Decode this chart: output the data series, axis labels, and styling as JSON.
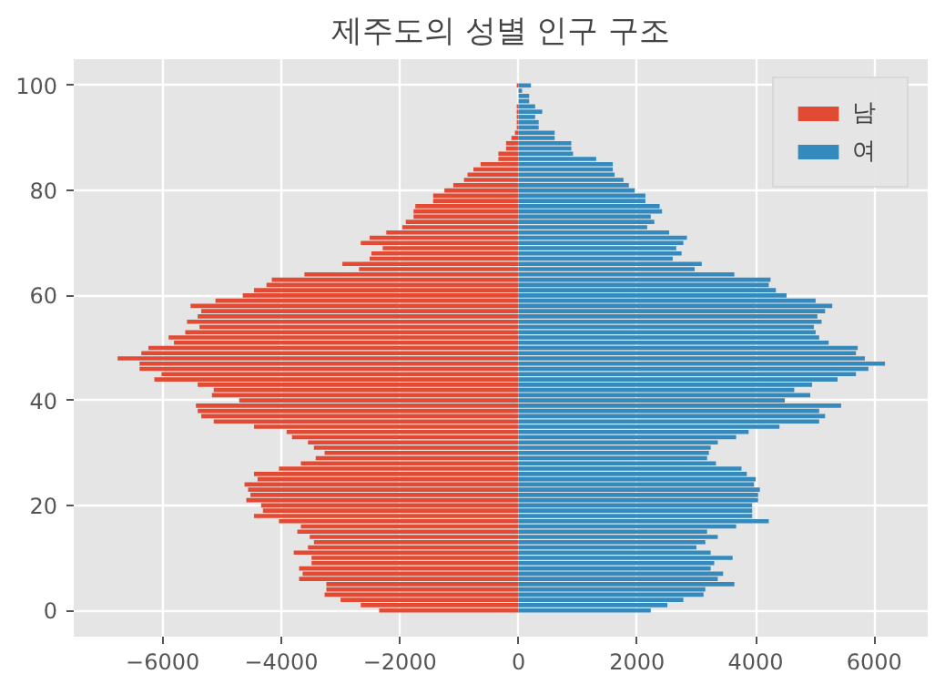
{
  "chart_data": {
    "type": "bar",
    "orientation": "horizontal",
    "title": "제주도의 성별 인구 구조",
    "x": [
      0,
      1,
      2,
      3,
      4,
      5,
      6,
      7,
      8,
      9,
      10,
      11,
      12,
      13,
      14,
      15,
      16,
      17,
      18,
      19,
      20,
      21,
      22,
      23,
      24,
      25,
      26,
      27,
      28,
      29,
      30,
      31,
      32,
      33,
      34,
      35,
      36,
      37,
      38,
      39,
      40,
      41,
      42,
      43,
      44,
      45,
      46,
      47,
      48,
      49,
      50,
      51,
      52,
      53,
      54,
      55,
      56,
      57,
      58,
      59,
      60,
      61,
      62,
      63,
      64,
      65,
      66,
      67,
      68,
      69,
      70,
      71,
      72,
      73,
      74,
      75,
      76,
      77,
      78,
      79,
      80,
      81,
      82,
      83,
      84,
      85,
      86,
      87,
      88,
      89,
      90,
      91,
      92,
      93,
      94,
      95,
      96,
      97,
      98,
      99,
      100
    ],
    "series": [
      {
        "name": "남",
        "color": "#e24a33",
        "values": [
          -2350,
          -2660,
          -3000,
          -3270,
          -3240,
          -3240,
          -3700,
          -3640,
          -3700,
          -3490,
          -3490,
          -3790,
          -3550,
          -3450,
          -3520,
          -3730,
          -3670,
          -4040,
          -4460,
          -4310,
          -4340,
          -4590,
          -4520,
          -4560,
          -4620,
          -4400,
          -4460,
          -4040,
          -3670,
          -3420,
          -3270,
          -3450,
          -3550,
          -3820,
          -3910,
          -4460,
          -5140,
          -5350,
          -5410,
          -5440,
          -4710,
          -5170,
          -5140,
          -5410,
          -6140,
          -6020,
          -6390,
          -6390,
          -6760,
          -6360,
          -6240,
          -5810,
          -5900,
          -5620,
          -5380,
          -5590,
          -5410,
          -5350,
          -5530,
          -5110,
          -4650,
          -4460,
          -4250,
          -4160,
          -3610,
          -2690,
          -2970,
          -2510,
          -2480,
          -2290,
          -2660,
          -2510,
          -2230,
          -1960,
          -1900,
          -1770,
          -1770,
          -1740,
          -1440,
          -1440,
          -1250,
          -1100,
          -920,
          -860,
          -760,
          -640,
          -340,
          -340,
          -210,
          -210,
          -120,
          -60,
          -30,
          -30,
          -30,
          -30,
          -30,
          0,
          0,
          0,
          -30
        ]
      },
      {
        "name": "여",
        "color": "#348abd",
        "values": [
          2230,
          2510,
          2780,
          3120,
          3150,
          3640,
          3360,
          3450,
          3240,
          3300,
          3610,
          3240,
          3000,
          3150,
          3360,
          3180,
          3670,
          4220,
          3940,
          3940,
          3940,
          4040,
          4040,
          4070,
          3970,
          4000,
          3850,
          3760,
          3330,
          3180,
          3210,
          3240,
          3360,
          3670,
          3880,
          4400,
          5070,
          5170,
          5070,
          5440,
          4490,
          4920,
          4650,
          4950,
          5380,
          5690,
          5900,
          6180,
          5840,
          5690,
          5720,
          5230,
          5070,
          5010,
          4980,
          5110,
          5040,
          5170,
          5290,
          5010,
          4520,
          4340,
          4220,
          4250,
          3640,
          2970,
          3090,
          2600,
          2750,
          2660,
          2780,
          2840,
          2540,
          2170,
          2290,
          2230,
          2420,
          2380,
          2140,
          2140,
          1960,
          1860,
          1770,
          1620,
          1590,
          1590,
          1310,
          920,
          890,
          890,
          610,
          610,
          340,
          340,
          280,
          400,
          280,
          180,
          180,
          60,
          210
        ]
      }
    ],
    "xlim": [
      -7500,
      6900
    ],
    "xticks": [
      -6000,
      -4000,
      -2000,
      0,
      2000,
      4000,
      6000
    ],
    "ylim": [
      -5,
      105
    ],
    "yticks": [
      0,
      20,
      40,
      60,
      80,
      100
    ],
    "grid": true,
    "legend": "top right",
    "stacked": true
  }
}
